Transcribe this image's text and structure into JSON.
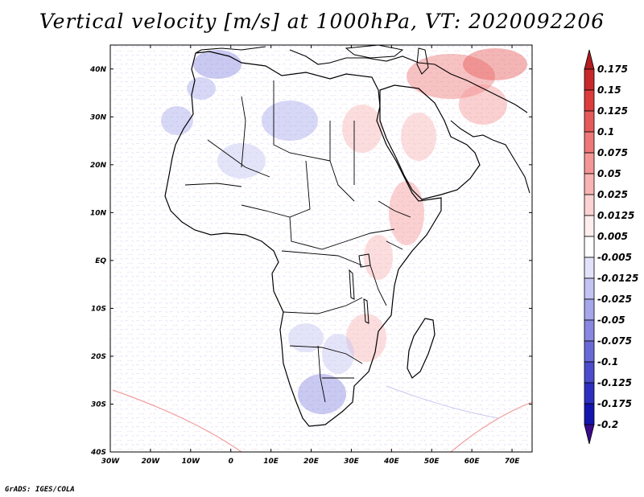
{
  "title": "Vertical velocity [m/s] at 1000hPa, VT: 2020092206",
  "footer": "GrADS: IGES/COLA",
  "map": {
    "region": "Africa and Arabian Peninsula",
    "lon_range": [
      -30,
      75
    ],
    "lat_range": [
      -40,
      45
    ],
    "lat_labels": [
      "40N",
      "30N",
      "20N",
      "10N",
      "EQ",
      "10S",
      "20S",
      "30S",
      "40S"
    ],
    "lon_labels": [
      "30W",
      "20W",
      "10W",
      "0",
      "10E",
      "20E",
      "30E",
      "40E",
      "50E",
      "60E",
      "70E"
    ]
  },
  "colorbar": {
    "labels": [
      "0.175",
      "0.15",
      "0.125",
      "0.1",
      "0.075",
      "0.05",
      "0.025",
      "0.0125",
      "0.005",
      "-0.005",
      "-0.0125",
      "-0.025",
      "-0.05",
      "-0.075",
      "-0.1",
      "-0.125",
      "-0.175",
      "-0.2"
    ],
    "colors": [
      "#b01c20",
      "#c8282c",
      "#dc3c3c",
      "#e65a5a",
      "#ee7878",
      "#f49696",
      "#f8b4b4",
      "#fcd2d2",
      "#ffeeee",
      "#ffffff",
      "#e2e2fa",
      "#c4c4f2",
      "#a6a6ea",
      "#8888e0",
      "#6a6ad6",
      "#4c4ccc",
      "#2e2ec0",
      "#1414ae",
      "#3a0a8a"
    ]
  }
}
